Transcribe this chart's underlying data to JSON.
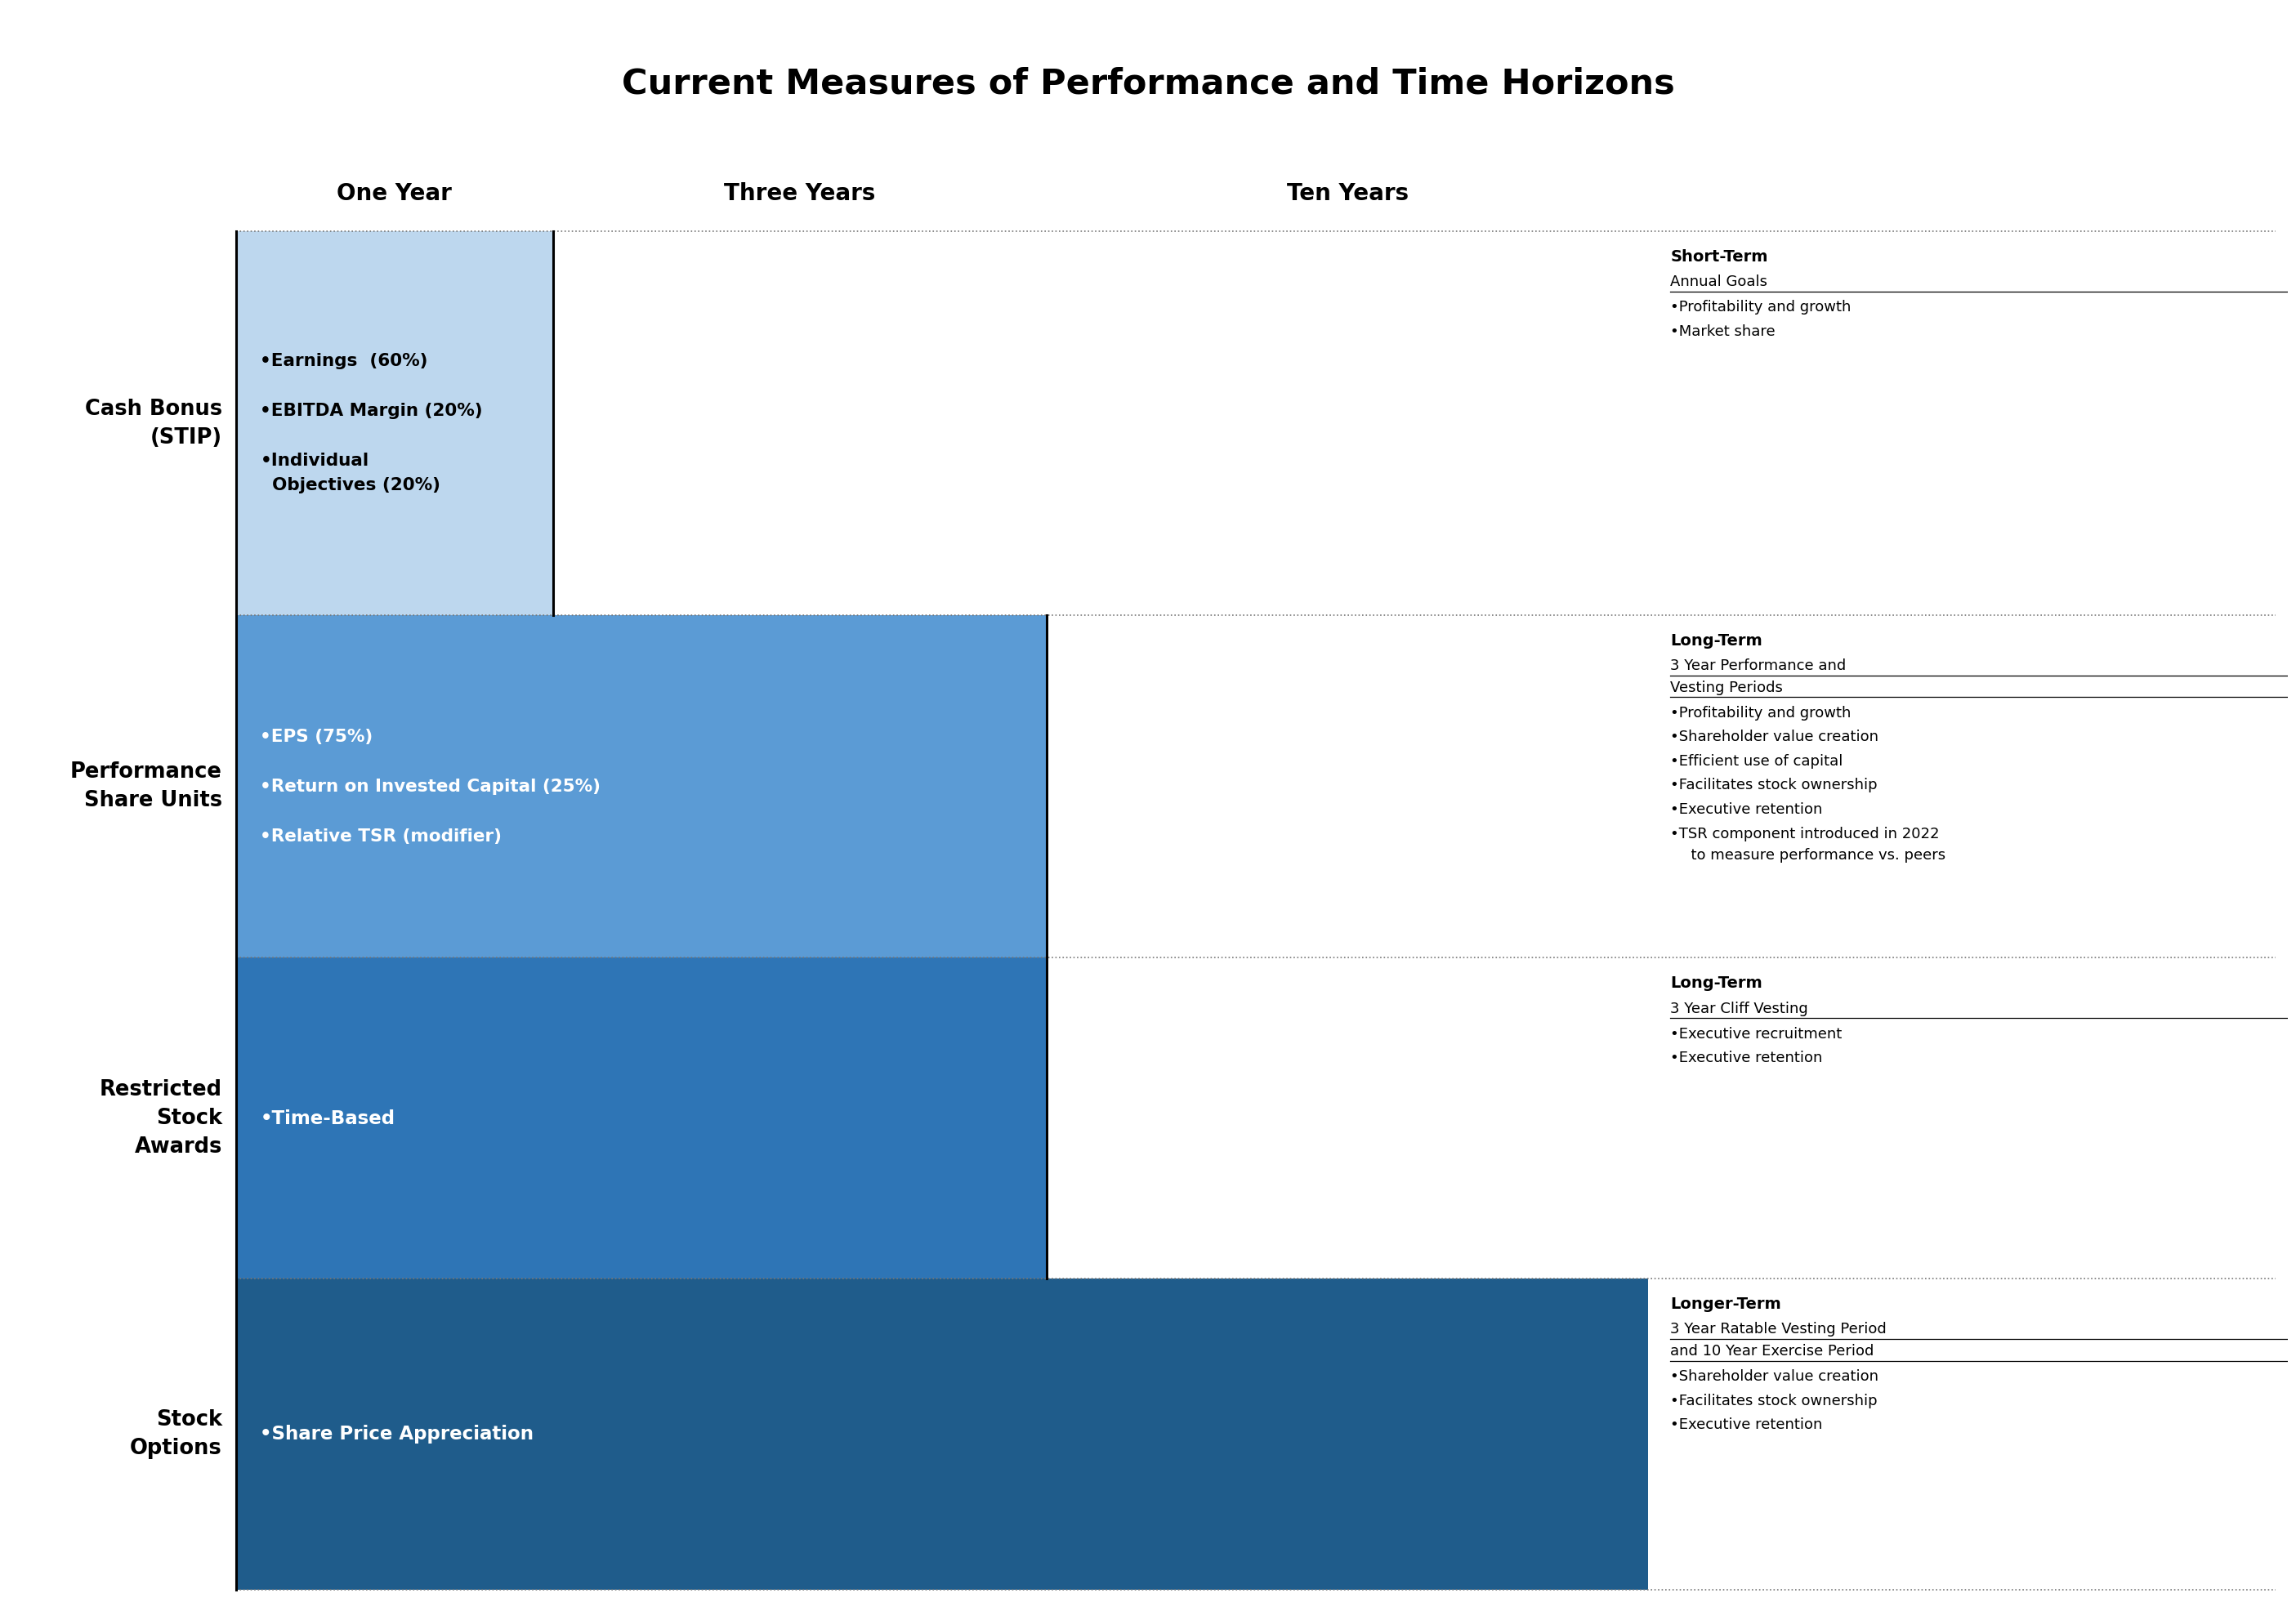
{
  "title": "Current Measures of Performance and Time Horizons",
  "bg_color": "#ffffff",
  "col_headers": [
    "One Year",
    "Three Years",
    "Ten Years"
  ],
  "row_labels": [
    "Cash Bonus\n(STIP)",
    "Performance\nShare Units",
    "Restricted\nStock\nAwards",
    "Stock\nOptions"
  ],
  "row_colors": [
    "#bdd7ee",
    "#5b9bd5",
    "#2e75b6",
    "#1f5c8b"
  ],
  "row_text_colors": [
    "#000000",
    "#ffffff",
    "#ffffff",
    "#ffffff"
  ],
  "row_box_texts": [
    "•Earnings  (60%)\n\n•EBITDA Margin (20%)\n\n•Individual\n  Objectives (20%)",
    "•EPS (75%)\n\n•Return on Invested Capital (25%)\n\n•Relative TSR (modifier)",
    "•Time-Based",
    "•Share Price Appreciation"
  ],
  "right_titles": [
    "Short-Term",
    "Long-Term",
    "Long-Term",
    "Longer-Term"
  ],
  "right_subtitles": [
    "Annual Goals",
    "3 Year Performance and\nVesting Periods",
    "3 Year Cliff Vesting",
    "3 Year Ratable Vesting Period\nand 10 Year Exercise Period"
  ],
  "right_bullets": [
    [
      "•Profitability and growth",
      "•Market share"
    ],
    [
      "•Profitability and growth",
      "•Shareholder value creation",
      "•Efficient use of capital",
      "•Facilitates stock ownership",
      "•Executive retention",
      "•TSR component introduced in 2022\n  to measure performance vs. peers"
    ],
    [
      "•Executive recruitment",
      "•Executive retention"
    ],
    [
      "•Shareholder value creation",
      "•Facilitates stock ownership",
      "•Executive retention"
    ]
  ],
  "fig_w": 36.0,
  "fig_h": 25.5
}
